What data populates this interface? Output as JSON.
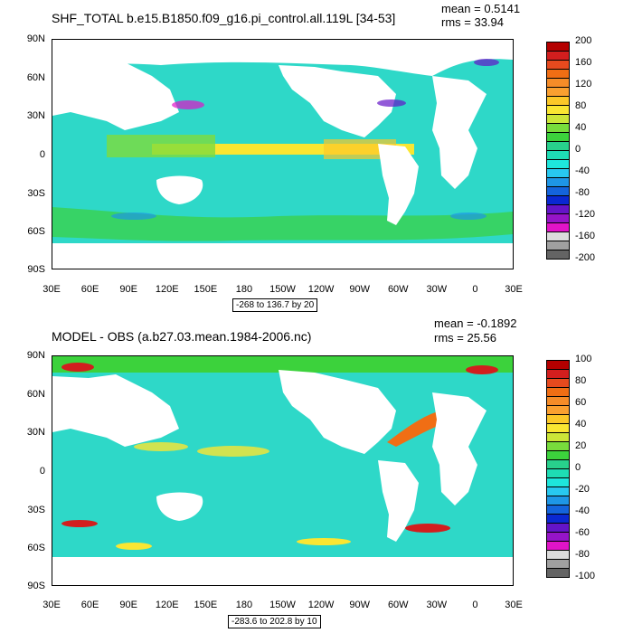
{
  "panels": [
    {
      "title": "SHF_TOTAL b.e15.B1850.f09_g16.pi_control.all.119L [34-53]",
      "mean": "mean = 0.5141",
      "rms": "rms = 33.94",
      "range_note": "-268 to 136.7 by 20",
      "y_ticks": [
        "90N",
        "60N",
        "30N",
        "0",
        "30S",
        "60S",
        "90S"
      ],
      "x_ticks": [
        "30E",
        "60E",
        "90E",
        "120E",
        "150E",
        "180",
        "150W",
        "120W",
        "90W",
        "60W",
        "30W",
        "0",
        "30E"
      ],
      "colorbar": {
        "labels": [
          "200",
          "160",
          "120",
          "80",
          "40",
          "0",
          "-40",
          "-80",
          "-120",
          "-160",
          "-200"
        ],
        "colors": [
          "#b40000",
          "#d21e1e",
          "#e64a1e",
          "#f06e14",
          "#f58c28",
          "#faa030",
          "#fcc828",
          "#fae632",
          "#cce638",
          "#78dc3c",
          "#3cd23c",
          "#28d08c",
          "#1edcb4",
          "#1ee6dc",
          "#28c8f0",
          "#1e96e6",
          "#1464dc",
          "#0a28d2",
          "#6414c8",
          "#9614c8",
          "#e114c8",
          "#dcdcdc",
          "#a0a0a0",
          "#646464"
        ]
      }
    },
    {
      "title": "MODEL - OBS (a.b27.03.mean.1984-2006.nc)",
      "mean": "mean = -0.1892",
      "rms": "rms = 25.56",
      "range_note": "-283.6 to 202.8 by 10",
      "y_ticks": [
        "90N",
        "60N",
        "30N",
        "0",
        "30S",
        "60S",
        "90S"
      ],
      "x_ticks": [
        "30E",
        "60E",
        "90E",
        "120E",
        "150E",
        "180",
        "150W",
        "120W",
        "90W",
        "60W",
        "30W",
        "0",
        "30E"
      ],
      "colorbar": {
        "labels": [
          "100",
          "80",
          "60",
          "40",
          "20",
          "0",
          "-20",
          "-40",
          "-60",
          "-80",
          "-100"
        ],
        "colors": [
          "#b40000",
          "#d21e1e",
          "#e64a1e",
          "#f06e14",
          "#f58c28",
          "#faa030",
          "#fcc828",
          "#fae632",
          "#cce638",
          "#78dc3c",
          "#3cd23c",
          "#28d08c",
          "#1edcb4",
          "#1ee6dc",
          "#28c8f0",
          "#1e96e6",
          "#1464dc",
          "#0a28d2",
          "#6414c8",
          "#9614c8",
          "#e114c8",
          "#dcdcdc",
          "#a0a0a0",
          "#646464"
        ]
      }
    }
  ],
  "colors": {
    "ocean_base": "#2ed8c8",
    "warm": "#7edc3c",
    "hot": "#fae632",
    "land": "#ffffff"
  }
}
